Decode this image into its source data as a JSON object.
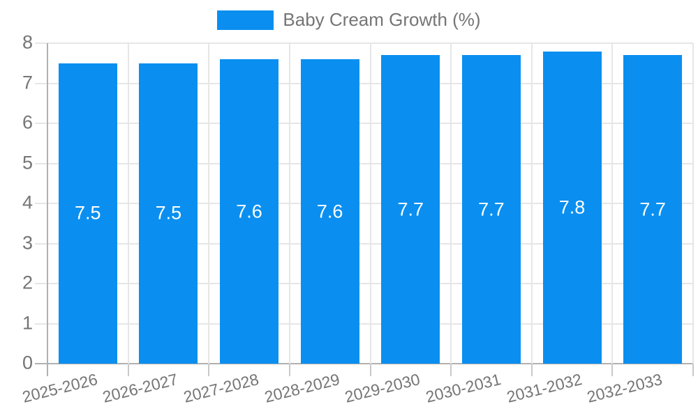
{
  "chart_data": {
    "type": "bar",
    "title": "Baby Cream Growth (%)",
    "legend_label": "Baby Cream Growth (%)",
    "legend_position": "top-center",
    "categories": [
      "2025-2026",
      "2026-2027",
      "2027-2028",
      "2028-2029",
      "2029-2030",
      "2030-2031",
      "2031-2032",
      "2032-2033"
    ],
    "series": [
      {
        "name": "Baby Cream Growth (%)",
        "values": [
          7.5,
          7.5,
          7.6,
          7.6,
          7.7,
          7.7,
          7.8,
          7.7
        ]
      }
    ],
    "value_labels": [
      "7.5",
      "7.5",
      "7.6",
      "7.6",
      "7.7",
      "7.7",
      "7.8",
      "7.7"
    ],
    "xlabel": "",
    "ylabel": "",
    "ylim": [
      0,
      8
    ],
    "yticks": [
      "0",
      "1",
      "2",
      "3",
      "4",
      "5",
      "6",
      "7",
      "8"
    ],
    "grid": "on",
    "colors": {
      "bar": "#0a8ff0",
      "grid_line": "#e6e6e6",
      "axis_line": "#b0b0b0",
      "tick_line": "#c9c9c9",
      "axis_text": "#757575",
      "value_text": "#ffffff",
      "background": "#ffffff"
    }
  }
}
